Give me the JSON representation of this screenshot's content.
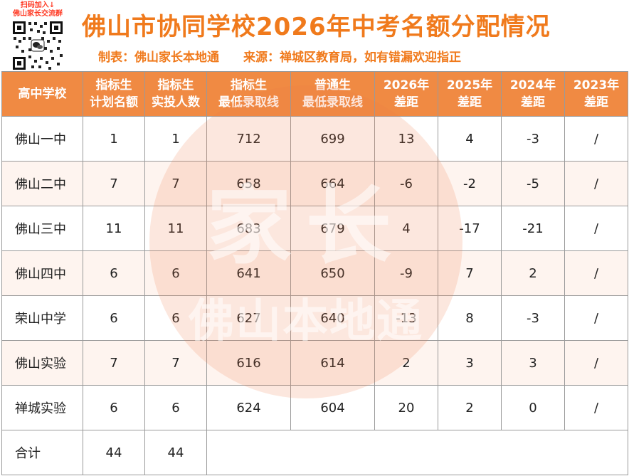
{
  "header": {
    "qr_caption_1": "扫码加入↓",
    "qr_caption_2": "佛山家长交流群",
    "title": "佛山市协同学校2026年中考名额分配情况",
    "maker": "制表：佛山家长本地通",
    "source": "来源：禅城区教育局，如有错漏欢迎指正",
    "accent_color": "#f07a1c"
  },
  "table": {
    "header_color": "#f08a43",
    "columns": [
      {
        "line1": "高中学校",
        "line2": ""
      },
      {
        "line1": "指标生",
        "line2": "计划名额"
      },
      {
        "line1": "指标生",
        "line2": "实投人数"
      },
      {
        "line1": "指标生",
        "line2": "最低录取线"
      },
      {
        "line1": "普通生",
        "line2": "最低录取线"
      },
      {
        "line1": "2026年",
        "line2": "差距"
      },
      {
        "line1": "2025年",
        "line2": "差距"
      },
      {
        "line1": "2024年",
        "line2": "差距"
      },
      {
        "line1": "2023年",
        "line2": "差距"
      }
    ],
    "rows": [
      [
        "佛山一中",
        "1",
        "1",
        "712",
        "699",
        "13",
        "4",
        "-3",
        "/"
      ],
      [
        "佛山二中",
        "7",
        "7",
        "658",
        "664",
        "-6",
        "-2",
        "-5",
        "/"
      ],
      [
        "佛山三中",
        "11",
        "11",
        "683",
        "679",
        "4",
        "-17",
        "-21",
        "/"
      ],
      [
        "佛山四中",
        "6",
        "6",
        "641",
        "650",
        "-9",
        "7",
        "2",
        "/"
      ],
      [
        "荣山中学",
        "6",
        "6",
        "627",
        "640",
        "-13",
        "8",
        "-3",
        "/"
      ],
      [
        "佛山实验",
        "7",
        "7",
        "616",
        "614",
        "2",
        "3",
        "3",
        "/"
      ],
      [
        "禅城实验",
        "6",
        "6",
        "624",
        "604",
        "20",
        "2",
        "0",
        "/"
      ]
    ],
    "total": {
      "label": "合计",
      "plan": "44",
      "actual": "44"
    }
  },
  "watermark": {
    "big": "家长",
    "small": "佛山本地通"
  }
}
